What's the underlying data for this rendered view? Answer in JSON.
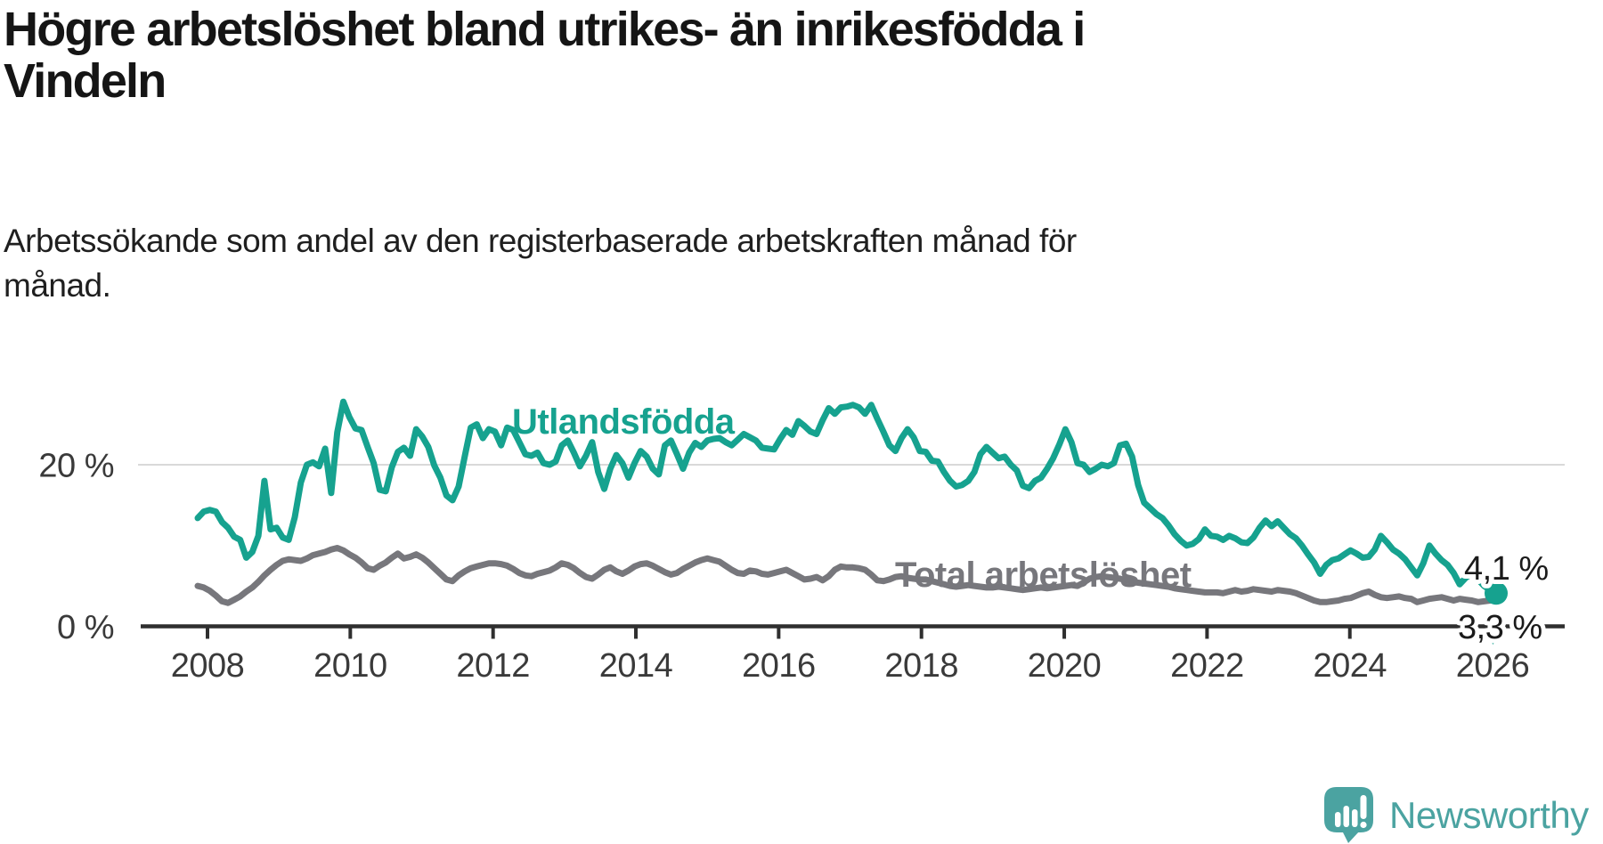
{
  "header": {
    "title": "Högre arbetslöshet bland utrikes- än inrikesfödda i Vindeln",
    "title_lines": [
      "Högre arbetslöshet bland utrikes- än inrikesfödda i",
      "Vindeln"
    ],
    "subtitle": "Arbetssökande som andel av den registerbaserade arbetskraften månad för månad.",
    "subtitle_lines": [
      "Arbetssökande som andel av den registerbaserade arbetskraften månad för",
      "månad."
    ]
  },
  "chart_data": {
    "type": "line",
    "title": "Högre arbetslöshet bland utrikes- än inrikesfödda i Vindeln",
    "xlabel": "",
    "ylabel": "Arbetssökande som andel av den registerbaserade arbetskraften",
    "unit": "%",
    "grid": "horizontal-20-only",
    "legend_position": "inline-labels",
    "frequency": "monthly",
    "start": {
      "year": 2008,
      "month": 1
    },
    "end": {
      "year": 2025,
      "month": 11
    },
    "x_axis": {
      "tick_years": [
        2008,
        2010,
        2012,
        2014,
        2016,
        2018,
        2020,
        2022,
        2024,
        2026
      ]
    },
    "y_axis": {
      "range": [
        0,
        30
      ],
      "ticks": [
        {
          "value": 20,
          "label": "20 %",
          "gridline": true
        },
        {
          "value": 0,
          "label": "0 %",
          "gridline": false
        }
      ]
    },
    "series": [
      {
        "name": "Utlandsfödda",
        "color": "#16a28f",
        "end_label": "4,1 %",
        "end_value": 4.1,
        "values": [
          13.4,
          14.2,
          14.4,
          14.2,
          12.9,
          12.2,
          11.1,
          10.7,
          8.5,
          9.2,
          11.2,
          18.0,
          12.0,
          12.2,
          11.0,
          10.7,
          13.5,
          17.8,
          20.0,
          20.3,
          19.8,
          22.0,
          16.5,
          24.0,
          27.8,
          25.9,
          24.5,
          24.3,
          22.2,
          20.2,
          16.9,
          16.7,
          19.7,
          21.6,
          22.1,
          21.1,
          24.4,
          23.5,
          22.2,
          19.9,
          18.4,
          16.2,
          15.6,
          17.3,
          21.0,
          24.6,
          25.0,
          23.3,
          24.4,
          24.1,
          22.4,
          24.6,
          24.3,
          22.8,
          21.3,
          21.1,
          21.5,
          20.2,
          20.0,
          20.4,
          22.4,
          23.0,
          21.5,
          19.8,
          21.1,
          22.8,
          19.1,
          17.0,
          19.5,
          21.2,
          20.2,
          18.4,
          20.2,
          21.7,
          21.0,
          19.5,
          18.8,
          22.4,
          23.0,
          21.3,
          19.5,
          21.5,
          22.7,
          22.2,
          23.0,
          23.2,
          23.3,
          22.8,
          22.4,
          23.1,
          23.8,
          23.4,
          23.0,
          22.1,
          22.0,
          21.9,
          23.2,
          24.3,
          23.7,
          25.4,
          24.8,
          24.1,
          23.8,
          25.5,
          27.0,
          26.3,
          27.1,
          27.2,
          27.4,
          27.1,
          26.3,
          27.4,
          25.7,
          24.1,
          22.4,
          21.7,
          23.3,
          24.4,
          23.4,
          21.7,
          21.6,
          20.5,
          20.4,
          19.1,
          18.0,
          17.3,
          17.5,
          18.0,
          19.1,
          21.3,
          22.2,
          21.5,
          20.8,
          21.0,
          20.0,
          19.3,
          17.4,
          17.1,
          18.0,
          18.4,
          19.5,
          20.8,
          22.5,
          24.4,
          22.8,
          20.2,
          20.0,
          19.1,
          19.5,
          20.0,
          19.8,
          20.2,
          22.4,
          22.6,
          21.0,
          17.5,
          15.3,
          14.6,
          13.9,
          13.4,
          12.5,
          11.4,
          10.6,
          10.0,
          10.2,
          10.8,
          12.0,
          11.2,
          11.1,
          10.7,
          11.2,
          10.9,
          10.4,
          10.3,
          11.0,
          12.2,
          13.1,
          12.4,
          13.0,
          12.2,
          11.4,
          10.9,
          10.0,
          8.9,
          7.9,
          6.5,
          7.6,
          8.2,
          8.4,
          8.9,
          9.4,
          9.0,
          8.5,
          8.6,
          9.5,
          11.2,
          10.4,
          9.5,
          9.0,
          8.3,
          7.3,
          6.3,
          7.8,
          10.0,
          9.0,
          8.2,
          7.6,
          6.6,
          5.2,
          6.0,
          6.5,
          5.8,
          5.0,
          4.5,
          4.1
        ]
      },
      {
        "name": "Total arbetslöshet",
        "color": "#77777c",
        "end_label": "3,3 %",
        "end_value": 3.3,
        "values": [
          5.0,
          4.8,
          4.4,
          3.8,
          3.1,
          2.9,
          3.3,
          3.7,
          4.3,
          4.8,
          5.5,
          6.3,
          7.0,
          7.6,
          8.1,
          8.3,
          8.2,
          8.1,
          8.4,
          8.8,
          9.0,
          9.2,
          9.5,
          9.7,
          9.4,
          8.9,
          8.5,
          7.9,
          7.2,
          7.0,
          7.5,
          7.9,
          8.5,
          9.0,
          8.4,
          8.6,
          8.9,
          8.5,
          7.9,
          7.2,
          6.5,
          5.8,
          5.6,
          6.3,
          6.8,
          7.2,
          7.4,
          7.6,
          7.8,
          7.8,
          7.7,
          7.5,
          7.1,
          6.6,
          6.3,
          6.2,
          6.5,
          6.7,
          6.9,
          7.3,
          7.8,
          7.6,
          7.2,
          6.6,
          6.1,
          5.9,
          6.4,
          7.0,
          7.3,
          6.8,
          6.5,
          6.9,
          7.4,
          7.7,
          7.8,
          7.5,
          7.1,
          6.7,
          6.4,
          6.6,
          7.1,
          7.5,
          7.9,
          8.2,
          8.4,
          8.2,
          8.0,
          7.5,
          7.0,
          6.6,
          6.5,
          6.9,
          6.8,
          6.5,
          6.4,
          6.6,
          6.8,
          7.0,
          6.6,
          6.2,
          5.8,
          5.9,
          6.1,
          5.7,
          6.2,
          7.0,
          7.4,
          7.3,
          7.3,
          7.2,
          7.0,
          6.4,
          5.7,
          5.6,
          5.8,
          6.1,
          6.2,
          6.0,
          5.9,
          5.8,
          5.8,
          5.6,
          5.4,
          5.2,
          5.0,
          4.9,
          5.0,
          5.1,
          5.0,
          4.9,
          4.8,
          4.8,
          4.9,
          4.8,
          4.7,
          4.6,
          4.5,
          4.6,
          4.7,
          4.8,
          4.7,
          4.8,
          4.9,
          5.0,
          5.1,
          5.0,
          5.4,
          5.9,
          6.1,
          6.2,
          6.1,
          6.0,
          5.9,
          5.7,
          5.5,
          5.4,
          5.3,
          5.2,
          5.1,
          5.0,
          4.9,
          4.7,
          4.6,
          4.5,
          4.4,
          4.3,
          4.2,
          4.2,
          4.2,
          4.1,
          4.3,
          4.5,
          4.3,
          4.4,
          4.6,
          4.5,
          4.4,
          4.3,
          4.5,
          4.4,
          4.3,
          4.1,
          3.8,
          3.5,
          3.2,
          3.0,
          3.0,
          3.1,
          3.2,
          3.4,
          3.5,
          3.8,
          4.1,
          4.3,
          3.9,
          3.6,
          3.5,
          3.6,
          3.7,
          3.5,
          3.4,
          3.0,
          3.2,
          3.4,
          3.5,
          3.6,
          3.4,
          3.2,
          3.4,
          3.3,
          3.2,
          3.0,
          3.1,
          3.2,
          3.3
        ]
      }
    ]
  },
  "colors": {
    "accent_teal": "#16a28f",
    "line_gray": "#77777c",
    "axis": "#2f2f2f",
    "gridline": "#d9d9d9",
    "text_dark": "#151515",
    "brand_teal": "#4ba3a1"
  },
  "footer": {
    "brand": "Newsworthy"
  }
}
